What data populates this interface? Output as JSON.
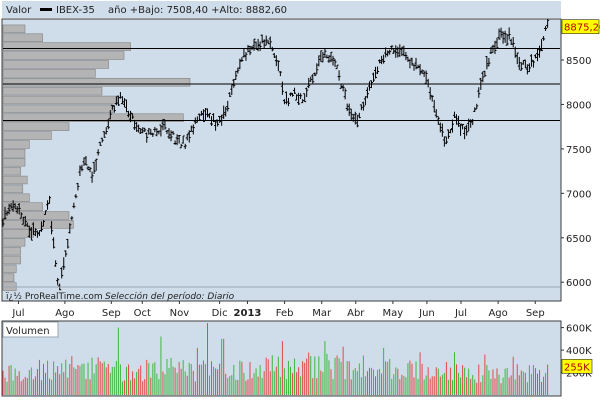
{
  "colors": {
    "panel_bg": "#cfdcea",
    "frame": "#3c3c3c",
    "profile_fill": "#b4b4b4",
    "vol_up": "#3db83d",
    "vol_down": "#e24a4a",
    "price_tag_bg": "#ffff00",
    "price_tag_text": "#b00000"
  },
  "header": {
    "series_label": "Valor",
    "symbol": "IBEX-35",
    "range_text": "año +Bajo: 7508,40 +Alto: 8882,60"
  },
  "footer": {
    "copyright": "ï¿½ ProRealTime.com",
    "period": "Selección del período: Diario"
  },
  "chart_data": [
    {
      "type": "bar",
      "subtype": "ohlc",
      "ylim": [
        5800,
        8950
      ],
      "y_ticks": [
        6000,
        6500,
        7000,
        7500,
        8000,
        8500
      ],
      "y_tick_labels": [
        "6000",
        "6500",
        "7000",
        "7500",
        "8000",
        "8500"
      ],
      "x_labels": [
        "Jul",
        "Ago",
        "Sep",
        "Oct",
        "Nov",
        "Dic",
        "2013",
        "Feb",
        "Mar",
        "Abr",
        "May",
        "Jun",
        "Jul",
        "Ago",
        "Sep"
      ],
      "x_label_pos": [
        0.5,
        2.0,
        3.5,
        4.5,
        5.7,
        7.0,
        7.9,
        9.1,
        10.3,
        11.4,
        12.6,
        13.7,
        14.8,
        16.0,
        17.2
      ],
      "x_range": [
        0,
        18
      ],
      "x_bold_label": "2013",
      "horizontal_levels": [
        8630,
        8230,
        7820
      ],
      "last_price": 8875.2,
      "last_price_label": "8875,20",
      "trend_path": [
        [
          0.0,
          6700
        ],
        [
          0.4,
          6900
        ],
        [
          0.8,
          6600
        ],
        [
          1.2,
          6550
        ],
        [
          1.5,
          6900
        ],
        [
          1.7,
          6200
        ],
        [
          1.8,
          5900
        ],
        [
          2.0,
          6250
        ],
        [
          2.3,
          6900
        ],
        [
          2.6,
          7400
        ],
        [
          2.9,
          7200
        ],
        [
          3.2,
          7600
        ],
        [
          3.5,
          7900
        ],
        [
          3.8,
          8100
        ],
        [
          4.1,
          7900
        ],
        [
          4.4,
          7700
        ],
        [
          4.8,
          7650
        ],
        [
          5.2,
          7750
        ],
        [
          5.6,
          7600
        ],
        [
          5.9,
          7550
        ],
        [
          6.3,
          7850
        ],
        [
          6.6,
          7950
        ],
        [
          6.9,
          7750
        ],
        [
          7.2,
          7950
        ],
        [
          7.5,
          8300
        ],
        [
          7.8,
          8550
        ],
        [
          8.2,
          8700
        ],
        [
          8.6,
          8700
        ],
        [
          8.9,
          8450
        ],
        [
          9.1,
          8000
        ],
        [
          9.4,
          8150
        ],
        [
          9.7,
          8050
        ],
        [
          10.0,
          8300
        ],
        [
          10.4,
          8600
        ],
        [
          10.8,
          8400
        ],
        [
          11.2,
          7900
        ],
        [
          11.5,
          7850
        ],
        [
          11.8,
          8150
        ],
        [
          12.2,
          8500
        ],
        [
          12.6,
          8650
        ],
        [
          13.0,
          8550
        ],
        [
          13.3,
          8450
        ],
        [
          13.7,
          8300
        ],
        [
          14.0,
          7900
        ],
        [
          14.3,
          7550
        ],
        [
          14.6,
          7850
        ],
        [
          14.9,
          7700
        ],
        [
          15.2,
          7850
        ],
        [
          15.5,
          8300
        ],
        [
          15.8,
          8600
        ],
        [
          16.1,
          8800
        ],
        [
          16.4,
          8750
        ],
        [
          16.7,
          8450
        ],
        [
          17.0,
          8400
        ],
        [
          17.3,
          8600
        ],
        [
          17.6,
          8875
        ]
      ],
      "volume_profile": [
        {
          "price": 8850,
          "value": 0.1
        },
        {
          "price": 8750,
          "value": 0.18
        },
        {
          "price": 8650,
          "value": 0.58
        },
        {
          "price": 8550,
          "value": 0.55
        },
        {
          "price": 8450,
          "value": 0.48
        },
        {
          "price": 8350,
          "value": 0.42
        },
        {
          "price": 8250,
          "value": 0.85
        },
        {
          "price": 8150,
          "value": 0.45
        },
        {
          "price": 8050,
          "value": 0.52
        },
        {
          "price": 7950,
          "value": 0.5
        },
        {
          "price": 7850,
          "value": 0.82
        },
        {
          "price": 7750,
          "value": 0.3
        },
        {
          "price": 7650,
          "value": 0.22
        },
        {
          "price": 7550,
          "value": 0.12
        },
        {
          "price": 7450,
          "value": 0.1
        },
        {
          "price": 7350,
          "value": 0.1
        },
        {
          "price": 7250,
          "value": 0.08
        },
        {
          "price": 7150,
          "value": 0.11
        },
        {
          "price": 7050,
          "value": 0.09
        },
        {
          "price": 6950,
          "value": 0.12
        },
        {
          "price": 6850,
          "value": 0.18
        },
        {
          "price": 6750,
          "value": 0.3
        },
        {
          "price": 6650,
          "value": 0.32
        },
        {
          "price": 6550,
          "value": 0.14
        },
        {
          "price": 6450,
          "value": 0.1
        },
        {
          "price": 6350,
          "value": 0.08
        },
        {
          "price": 6250,
          "value": 0.08
        },
        {
          "price": 6150,
          "value": 0.06
        },
        {
          "price": 6050,
          "value": 0.05
        },
        {
          "price": 5950,
          "value": 0.06
        }
      ]
    },
    {
      "type": "bar",
      "title": "Volumen",
      "ylim": [
        0,
        650
      ],
      "y_ticks": [
        200,
        400,
        600
      ],
      "y_tick_labels": [
        "200K",
        "400K",
        "600K"
      ],
      "last_value": 255,
      "last_value_label": "255K",
      "volume_envelope": [
        [
          0.0,
          250
        ],
        [
          1.5,
          280
        ],
        [
          2.5,
          300
        ],
        [
          4.0,
          260
        ],
        [
          5.5,
          280
        ],
        [
          7.0,
          250
        ],
        [
          8.5,
          300
        ],
        [
          10.0,
          320
        ],
        [
          11.5,
          300
        ],
        [
          13.0,
          260
        ],
        [
          14.5,
          250
        ],
        [
          16.0,
          230
        ],
        [
          17.6,
          240
        ]
      ],
      "volume_peaks": [
        [
          3.7,
          600
        ],
        [
          5.1,
          520
        ],
        [
          6.3,
          420
        ],
        [
          6.6,
          640
        ],
        [
          7.1,
          500
        ],
        [
          9.0,
          480
        ],
        [
          10.4,
          480
        ],
        [
          11.0,
          430
        ],
        [
          12.3,
          420
        ],
        [
          13.5,
          380
        ],
        [
          14.6,
          380
        ],
        [
          15.6,
          360
        ],
        [
          16.5,
          340
        ]
      ]
    }
  ]
}
